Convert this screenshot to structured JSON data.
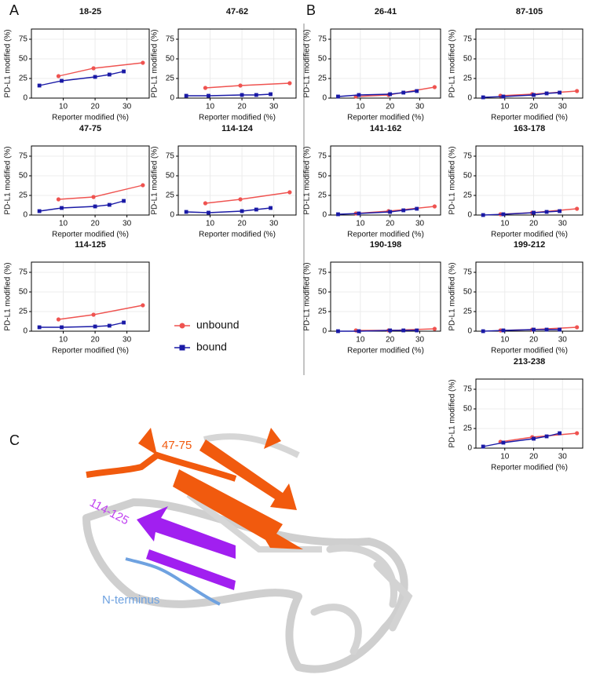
{
  "panel_labels": [
    "A",
    "B",
    "C"
  ],
  "structure": {
    "labels": [
      "47-75",
      "114-125",
      "N-terminus"
    ]
  },
  "chart_data": [
    {
      "type": "line",
      "title": "18-25",
      "x_label": "Reporter modified (%)",
      "y_label": "PD-L1 modified (%)",
      "xlim": [
        0,
        37
      ],
      "ylim": [
        0,
        88
      ],
      "xticks": [
        10,
        20,
        30
      ],
      "yticks": [
        0,
        25,
        50,
        75
      ],
      "grid": true,
      "series": [
        {
          "name": "unbound",
          "color": "#ef5350",
          "x": [
            8.5,
            19.5,
            35
          ],
          "values": [
            28,
            38,
            45
          ]
        },
        {
          "name": "bound",
          "color": "#1a1aa6",
          "x": [
            2.5,
            9.5,
            20,
            24.5,
            29
          ],
          "values": [
            16,
            22,
            27,
            30,
            34
          ]
        }
      ]
    },
    {
      "type": "line",
      "title": "47-62",
      "x_label": "Reporter modified (%)",
      "y_label": "PD-L1 modified (%)",
      "xlim": [
        0,
        37
      ],
      "ylim": [
        0,
        88
      ],
      "xticks": [
        10,
        20,
        30
      ],
      "yticks": [
        0,
        25,
        50,
        75
      ],
      "grid": true,
      "series": [
        {
          "name": "unbound",
          "color": "#ef5350",
          "x": [
            8.5,
            19.5,
            35
          ],
          "values": [
            13,
            16,
            19
          ]
        },
        {
          "name": "bound",
          "color": "#1a1aa6",
          "x": [
            2.5,
            9.5,
            20,
            24.5,
            29
          ],
          "values": [
            3,
            3,
            4,
            4,
            5
          ]
        }
      ]
    },
    {
      "type": "line",
      "title": "47-75",
      "x_label": "Reporter modified (%)",
      "y_label": "PD-L1 modified (%)",
      "xlim": [
        0,
        37
      ],
      "ylim": [
        0,
        88
      ],
      "xticks": [
        10,
        20,
        30
      ],
      "yticks": [
        0,
        25,
        50,
        75
      ],
      "grid": true,
      "series": [
        {
          "name": "unbound",
          "color": "#ef5350",
          "x": [
            8.5,
            19.5,
            35
          ],
          "values": [
            20,
            23,
            38
          ]
        },
        {
          "name": "bound",
          "color": "#1a1aa6",
          "x": [
            2.5,
            9.5,
            20,
            24.5,
            29
          ],
          "values": [
            5,
            9,
            11,
            13,
            18
          ]
        }
      ]
    },
    {
      "type": "line",
      "title": "114-124",
      "x_label": "Reporter modified (%)",
      "y_label": "PD-L1 modified (%)",
      "xlim": [
        0,
        37
      ],
      "ylim": [
        0,
        88
      ],
      "xticks": [
        10,
        20,
        30
      ],
      "yticks": [
        0,
        25,
        50,
        75
      ],
      "grid": true,
      "series": [
        {
          "name": "unbound",
          "color": "#ef5350",
          "x": [
            8.5,
            19.5,
            35
          ],
          "values": [
            15,
            20,
            29
          ]
        },
        {
          "name": "bound",
          "color": "#1a1aa6",
          "x": [
            2.5,
            9.5,
            20,
            24.5,
            29
          ],
          "values": [
            4,
            3,
            5,
            7,
            9
          ]
        }
      ]
    },
    {
      "type": "line",
      "title": "114-125",
      "x_label": "Reporter modified (%)",
      "y_label": "PD-L1 modified (%)",
      "xlim": [
        0,
        37
      ],
      "ylim": [
        0,
        88
      ],
      "xticks": [
        10,
        20,
        30
      ],
      "yticks": [
        0,
        25,
        50,
        75
      ],
      "grid": true,
      "series": [
        {
          "name": "unbound",
          "color": "#ef5350",
          "x": [
            8.5,
            19.5,
            35
          ],
          "values": [
            15,
            21,
            33
          ]
        },
        {
          "name": "bound",
          "color": "#1a1aa6",
          "x": [
            2.5,
            9.5,
            20,
            24.5,
            29
          ],
          "values": [
            5,
            5,
            6,
            7,
            11
          ]
        }
      ]
    },
    {
      "type": "line",
      "title": "26-41",
      "x_label": "Reporter modified (%)",
      "y_label": "PD-L1 modified (%)",
      "xlim": [
        0,
        37
      ],
      "ylim": [
        0,
        88
      ],
      "xticks": [
        10,
        20,
        30
      ],
      "yticks": [
        0,
        25,
        50,
        75
      ],
      "grid": true,
      "series": [
        {
          "name": "unbound",
          "color": "#ef5350",
          "x": [
            8.5,
            19.5,
            35
          ],
          "values": [
            2,
            4,
            14
          ]
        },
        {
          "name": "bound",
          "color": "#1a1aa6",
          "x": [
            2.5,
            9.5,
            20,
            24.5,
            29
          ],
          "values": [
            2,
            4,
            5,
            7,
            9
          ]
        }
      ]
    },
    {
      "type": "line",
      "title": "87-105",
      "x_label": "Reporter modified (%)",
      "y_label": "PD-L1 modified (%)",
      "xlim": [
        0,
        37
      ],
      "ylim": [
        0,
        88
      ],
      "xticks": [
        10,
        20,
        30
      ],
      "yticks": [
        0,
        25,
        50,
        75
      ],
      "grid": true,
      "series": [
        {
          "name": "unbound",
          "color": "#ef5350",
          "x": [
            8.5,
            19.5,
            35
          ],
          "values": [
            3,
            5,
            9
          ]
        },
        {
          "name": "bound",
          "color": "#1a1aa6",
          "x": [
            2.5,
            9.5,
            20,
            24.5,
            29
          ],
          "values": [
            1,
            2,
            4,
            6,
            7
          ]
        }
      ]
    },
    {
      "type": "line",
      "title": "141-162",
      "x_label": "Reporter modified (%)",
      "y_label": "PD-L1 modified (%)",
      "xlim": [
        0,
        37
      ],
      "ylim": [
        0,
        88
      ],
      "xticks": [
        10,
        20,
        30
      ],
      "yticks": [
        0,
        25,
        50,
        75
      ],
      "grid": true,
      "series": [
        {
          "name": "unbound",
          "color": "#ef5350",
          "x": [
            8.5,
            19.5,
            35
          ],
          "values": [
            2,
            5,
            11
          ]
        },
        {
          "name": "bound",
          "color": "#1a1aa6",
          "x": [
            2.5,
            9.5,
            20,
            24.5,
            29
          ],
          "values": [
            1,
            2,
            4,
            6,
            8
          ]
        }
      ]
    },
    {
      "type": "line",
      "title": "163-178",
      "x_label": "Reporter modified (%)",
      "y_label": "PD-L1 modified (%)",
      "xlim": [
        0,
        37
      ],
      "ylim": [
        0,
        88
      ],
      "xticks": [
        10,
        20,
        30
      ],
      "yticks": [
        0,
        25,
        50,
        75
      ],
      "grid": true,
      "series": [
        {
          "name": "unbound",
          "color": "#ef5350",
          "x": [
            8.5,
            19.5,
            35
          ],
          "values": [
            1,
            3,
            8
          ]
        },
        {
          "name": "bound",
          "color": "#1a1aa6",
          "x": [
            2.5,
            9.5,
            20,
            24.5,
            29
          ],
          "values": [
            0,
            1,
            3,
            4,
            5
          ]
        }
      ]
    },
    {
      "type": "line",
      "title": "190-198",
      "x_label": "Reporter modified (%)",
      "y_label": "PD-L1 modified (%)",
      "xlim": [
        0,
        37
      ],
      "ylim": [
        0,
        88
      ],
      "xticks": [
        10,
        20,
        30
      ],
      "yticks": [
        0,
        25,
        50,
        75
      ],
      "grid": true,
      "series": [
        {
          "name": "unbound",
          "color": "#ef5350",
          "x": [
            8.5,
            19.5,
            35
          ],
          "values": [
            1,
            1,
            3
          ]
        },
        {
          "name": "bound",
          "color": "#1a1aa6",
          "x": [
            2.5,
            9.5,
            20,
            24.5,
            29
          ],
          "values": [
            0,
            0,
            1,
            1,
            1
          ]
        }
      ]
    },
    {
      "type": "line",
      "title": "199-212",
      "x_label": "Reporter modified (%)",
      "y_label": "PD-L1 modified (%)",
      "xlim": [
        0,
        37
      ],
      "ylim": [
        0,
        88
      ],
      "xticks": [
        10,
        20,
        30
      ],
      "yticks": [
        0,
        25,
        50,
        75
      ],
      "grid": true,
      "series": [
        {
          "name": "unbound",
          "color": "#ef5350",
          "x": [
            8.5,
            19.5,
            35
          ],
          "values": [
            1,
            2,
            5
          ]
        },
        {
          "name": "bound",
          "color": "#1a1aa6",
          "x": [
            2.5,
            9.5,
            20,
            24.5,
            29
          ],
          "values": [
            0,
            1,
            2,
            2,
            2
          ]
        }
      ]
    },
    {
      "type": "line",
      "title": "213-238",
      "x_label": "Reporter modified (%)",
      "y_label": "PD-L1 modified (%)",
      "xlim": [
        0,
        37
      ],
      "ylim": [
        0,
        88
      ],
      "xticks": [
        10,
        20,
        30
      ],
      "yticks": [
        0,
        25,
        50,
        75
      ],
      "grid": true,
      "series": [
        {
          "name": "unbound",
          "color": "#ef5350",
          "x": [
            8.5,
            19.5,
            35
          ],
          "values": [
            8,
            14,
            19
          ]
        },
        {
          "name": "bound",
          "color": "#1a1aa6",
          "x": [
            2.5,
            9.5,
            20,
            24.5,
            29
          ],
          "values": [
            2,
            7,
            12,
            15,
            19
          ]
        }
      ]
    }
  ]
}
